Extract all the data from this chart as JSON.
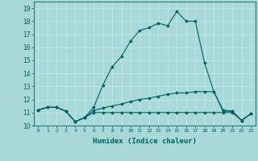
{
  "xlabel": "Humidex (Indice chaleur)",
  "bg_color": "#a8d8d8",
  "line_color": "#006060",
  "grid_color": "#c0e8e8",
  "xlim": [
    -0.5,
    23.5
  ],
  "ylim": [
    10.0,
    19.5
  ],
  "yticks": [
    10,
    11,
    12,
    13,
    14,
    15,
    16,
    17,
    18,
    19
  ],
  "xticks": [
    0,
    1,
    2,
    3,
    4,
    5,
    6,
    7,
    8,
    9,
    10,
    11,
    12,
    13,
    14,
    15,
    16,
    17,
    18,
    19,
    20,
    21,
    22,
    23
  ],
  "series": [
    {
      "x": [
        0,
        1,
        2,
        3,
        4,
        5,
        6,
        7,
        8,
        9,
        10,
        11,
        12,
        13,
        14,
        15,
        16,
        17,
        18,
        19,
        20,
        21,
        22,
        23
      ],
      "y": [
        11.2,
        11.4,
        11.4,
        11.1,
        10.3,
        10.6,
        11.4,
        13.1,
        14.5,
        15.3,
        16.5,
        17.3,
        17.5,
        17.85,
        17.65,
        18.75,
        18.0,
        18.0,
        14.8,
        12.6,
        11.2,
        11.1,
        10.4,
        10.9
      ]
    },
    {
      "x": [
        0,
        1,
        2,
        3,
        4,
        5,
        6,
        7,
        8,
        9,
        10,
        11,
        12,
        13,
        14,
        15,
        16,
        17,
        18,
        19,
        20,
        21,
        22,
        23
      ],
      "y": [
        11.2,
        11.4,
        11.4,
        11.1,
        10.3,
        10.6,
        11.15,
        11.35,
        11.5,
        11.65,
        11.85,
        12.0,
        12.1,
        12.25,
        12.4,
        12.5,
        12.5,
        12.6,
        12.6,
        12.6,
        11.1,
        11.1,
        10.4,
        10.9
      ]
    },
    {
      "x": [
        0,
        1,
        2,
        3,
        4,
        5,
        6,
        7,
        8,
        9,
        10,
        11,
        12,
        13,
        14,
        15,
        16,
        17,
        18,
        19,
        20,
        21,
        22,
        23
      ],
      "y": [
        11.2,
        11.4,
        11.4,
        11.1,
        10.3,
        10.6,
        11.0,
        11.0,
        11.0,
        11.0,
        11.0,
        11.0,
        11.0,
        11.0,
        11.0,
        11.0,
        11.0,
        11.0,
        11.0,
        11.0,
        11.0,
        11.0,
        10.4,
        10.9
      ]
    }
  ]
}
